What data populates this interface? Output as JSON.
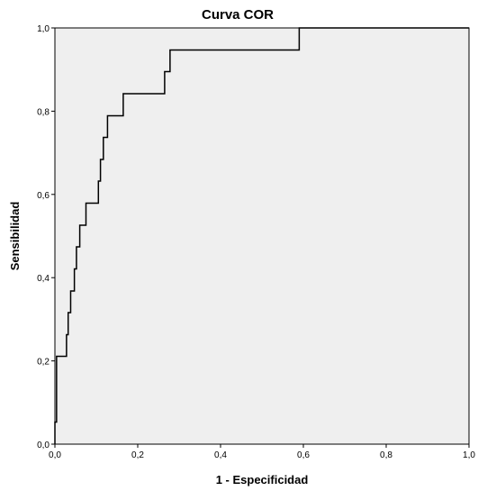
{
  "chart_data": {
    "type": "line",
    "title": "Curva COR",
    "xlabel": "1 - Especificidad",
    "ylabel": "Sensibilidad",
    "xlim": [
      0,
      1
    ],
    "ylim": [
      0,
      1
    ],
    "x_ticks": [
      "0,0",
      "0,2",
      "0,4",
      "0,6",
      "0,8",
      "1,0"
    ],
    "y_ticks": [
      "0,0",
      "0,2",
      "0,4",
      "0,6",
      "0,8",
      "1,0"
    ],
    "grid": false,
    "legend": "none",
    "series": [
      {
        "x": [
          0,
          0,
          0.004,
          0.004,
          0.028,
          0.028,
          0.032,
          0.032,
          0.038,
          0.038,
          0.047,
          0.047,
          0.052,
          0.052,
          0.06,
          0.06,
          0.075,
          0.075,
          0.105,
          0.105,
          0.11,
          0.11,
          0.117,
          0.117,
          0.127,
          0.127,
          0.165,
          0.165,
          0.265,
          0.265,
          0.278,
          0.278,
          0.59,
          0.59,
          0.673,
          0.673,
          1.0
        ],
        "y": [
          0,
          0.053,
          0.053,
          0.211,
          0.211,
          0.263,
          0.263,
          0.316,
          0.316,
          0.368,
          0.368,
          0.421,
          0.421,
          0.474,
          0.474,
          0.526,
          0.526,
          0.579,
          0.579,
          0.632,
          0.632,
          0.684,
          0.684,
          0.737,
          0.737,
          0.789,
          0.789,
          0.842,
          0.842,
          0.895,
          0.895,
          0.947,
          0.947,
          1.0,
          1.0,
          1.0,
          1.0
        ]
      }
    ],
    "colors": {
      "plot_background": "#efefef",
      "line": "#000000",
      "frame": "#000000"
    }
  }
}
